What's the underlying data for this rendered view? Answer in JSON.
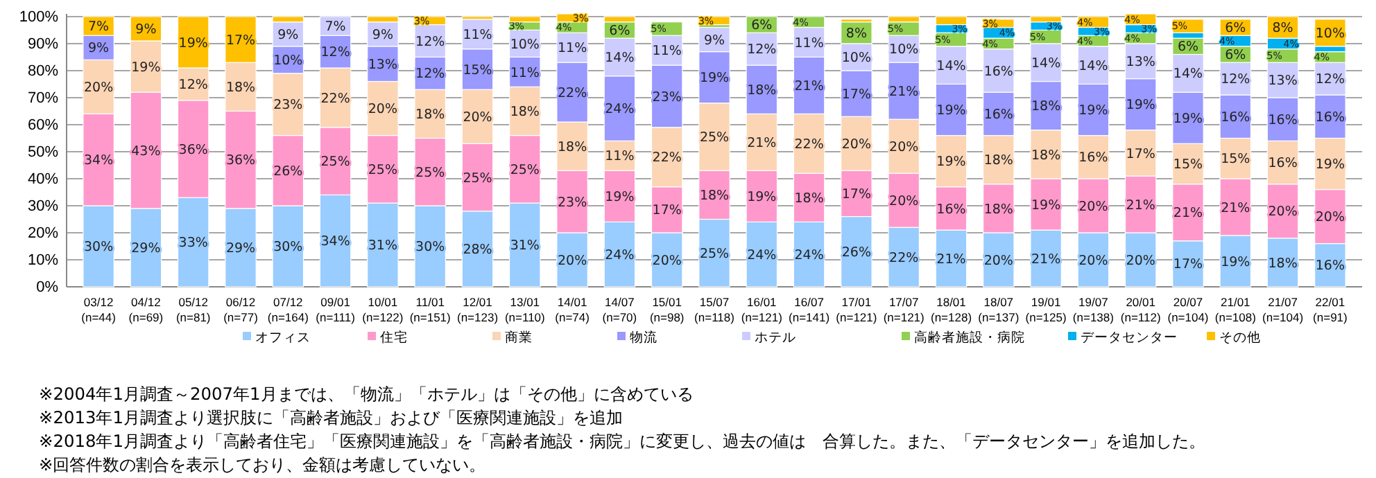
{
  "chart_data": {
    "type": "bar",
    "stacked": true,
    "ylim": [
      0,
      101
    ],
    "yticks": [
      {
        "value": 0,
        "label": "0%"
      },
      {
        "value": 10,
        "label": "10%"
      },
      {
        "value": 20,
        "label": "20%"
      },
      {
        "value": 30,
        "label": "30%"
      },
      {
        "value": 40,
        "label": "40%"
      },
      {
        "value": 50,
        "label": "50%"
      },
      {
        "value": 60,
        "label": "60%"
      },
      {
        "value": 70,
        "label": "70%"
      },
      {
        "value": 80,
        "label": "80%"
      },
      {
        "value": 90,
        "label": "90%"
      },
      {
        "value": 100,
        "label": "100%"
      }
    ],
    "grid": "y",
    "legend": "bottom",
    "categories": [
      "03/12\n(n=44)",
      "04/12\n(n=69)",
      "05/12\n(n=81)",
      "06/12\n(n=77)",
      "07/12\n(n=164)",
      "09/01\n(n=111)",
      "10/01\n(n=122)",
      "11/01\n(n=151)",
      "12/01\n(n=123)",
      "13/01\n(n=110)",
      "14/01\n(n=74)",
      "14/07\n(n=70)",
      "15/01\n(n=98)",
      "15/07\n(n=118)",
      "16/01\n(n=121)",
      "16/07\n(n=141)",
      "17/01\n(n=121)",
      "17/07\n(n=121)",
      "18/01\n(n=128)",
      "18/07\n(n=137)",
      "19/01\n(n=125)",
      "19/07\n(n=138)",
      "20/01\n(n=112)",
      "20/07\n(n=104)",
      "21/01\n(n=108)",
      "21/07\n(n=104)",
      "22/01\n(n=91)"
    ],
    "series": [
      {
        "name": "オフィス",
        "color": "#99ccff",
        "values": [
          30,
          29,
          33,
          29,
          30,
          34,
          31,
          30,
          28,
          31,
          20,
          24,
          20,
          25,
          24,
          24,
          26,
          22,
          21,
          20,
          21,
          20,
          20,
          17,
          19,
          18,
          16
        ],
        "value_labels": [
          "30%",
          "29%",
          "33%",
          "29%",
          "30%",
          "34%",
          "31%",
          "30%",
          "28%",
          "31%",
          "20%",
          "24%",
          "20%",
          "25%",
          "24%",
          "24%",
          "26%",
          "22%",
          "21%",
          "20%",
          "21%",
          "20%",
          "20%",
          "17%",
          "19%",
          "18%",
          "16%"
        ]
      },
      {
        "name": "住宅",
        "color": "#ff99cc",
        "values": [
          34,
          43,
          36,
          36,
          26,
          25,
          25,
          25,
          25,
          25,
          23,
          19,
          17,
          18,
          19,
          18,
          17,
          20,
          16,
          18,
          19,
          20,
          21,
          21,
          21,
          20,
          20
        ],
        "value_labels": [
          "34%",
          "43%",
          "36%",
          "36%",
          "26%",
          "25%",
          "25%",
          "25%",
          "25%",
          "25%",
          "23%",
          "19%",
          "17%",
          "18%",
          "19%",
          "18%",
          "17%",
          "20%",
          "16%",
          "18%",
          "19%",
          "20%",
          "21%",
          "21%",
          "21%",
          "20%",
          "20%"
        ]
      },
      {
        "name": "商業",
        "color": "#fcd5b5",
        "values": [
          20,
          19,
          12,
          18,
          23,
          22,
          20,
          18,
          20,
          18,
          18,
          11,
          22,
          25,
          21,
          22,
          20,
          20,
          19,
          18,
          18,
          16,
          17,
          15,
          15,
          16,
          19
        ],
        "value_labels": [
          "20%",
          "19%",
          "12%",
          "18%",
          "23%",
          "22%",
          "20%",
          "18%",
          "20%",
          "18%",
          "18%",
          "11%",
          "22%",
          "25%",
          "21%",
          "22%",
          "20%",
          "20%",
          "19%",
          "18%",
          "18%",
          "16%",
          "17%",
          "15%",
          "15%",
          "16%",
          "19%"
        ]
      },
      {
        "name": "物流",
        "color": "#9999ff",
        "values": [
          9,
          null,
          null,
          null,
          10,
          12,
          13,
          12,
          15,
          11,
          22,
          24,
          23,
          19,
          18,
          21,
          17,
          21,
          19,
          16,
          18,
          19,
          19,
          19,
          16,
          16,
          16
        ],
        "value_labels": [
          "9%",
          null,
          null,
          null,
          "10%",
          "12%",
          "13%",
          "12%",
          "15%",
          "11%",
          "22%",
          "24%",
          "23%",
          "19%",
          "18%",
          "21%",
          "17%",
          "21%",
          "19%",
          "16%",
          "18%",
          "19%",
          "19%",
          "19%",
          "16%",
          "16%",
          "16%"
        ]
      },
      {
        "name": "ホテル",
        "color": "#ccccff",
        "values": [
          null,
          null,
          null,
          null,
          9,
          7,
          9,
          12,
          11,
          10,
          11,
          14,
          11,
          9,
          12,
          11,
          10,
          10,
          14,
          16,
          14,
          14,
          13,
          14,
          12,
          13,
          12
        ],
        "value_labels": [
          null,
          null,
          null,
          null,
          "9%",
          "7%",
          "9%",
          "12%",
          "11%",
          "10%",
          "11%",
          "14%",
          "11%",
          "9%",
          "12%",
          "11%",
          "10%",
          "10%",
          "14%",
          "16%",
          "14%",
          "14%",
          "13%",
          "14%",
          "12%",
          "13%",
          "12%"
        ]
      },
      {
        "name": "高齢者施設・病院",
        "color": "#92d050",
        "values": [
          null,
          null,
          null,
          null,
          null,
          null,
          null,
          null,
          null,
          3,
          4,
          6,
          5,
          1,
          6,
          4,
          8,
          5,
          5,
          4,
          5,
          4,
          4,
          6,
          6,
          5,
          4
        ],
        "value_labels": [
          null,
          null,
          null,
          null,
          null,
          null,
          null,
          null,
          null,
          "3%",
          "4%",
          "6%",
          "5%",
          null,
          "6%",
          "4%",
          "8%",
          "5%",
          "5%",
          "4%",
          "5%",
          "4%",
          "4%",
          "6%",
          "6%",
          "5%",
          "4%"
        ]
      },
      {
        "name": "データセンター",
        "color": "#00b0f0",
        "values": [
          null,
          null,
          null,
          null,
          null,
          null,
          null,
          null,
          null,
          null,
          null,
          null,
          null,
          null,
          null,
          null,
          null,
          null,
          3,
          4,
          3,
          3,
          3,
          2,
          4,
          4,
          2
        ],
        "value_labels": [
          null,
          null,
          null,
          null,
          null,
          null,
          null,
          null,
          null,
          null,
          null,
          null,
          null,
          null,
          null,
          null,
          null,
          null,
          "3%",
          "4%",
          "3%",
          "3%",
          "3%",
          null,
          "4%",
          "4%",
          null
        ]
      },
      {
        "name": "その他",
        "color": "#ffc000",
        "values": [
          7,
          9,
          19,
          17,
          2,
          null,
          2,
          3,
          1,
          2,
          3,
          2,
          null,
          3,
          null,
          null,
          1,
          2,
          3,
          3,
          2,
          4,
          4,
          5,
          6,
          8,
          10
        ],
        "value_labels": [
          "7%",
          "9%",
          "19%",
          "17%",
          null,
          null,
          null,
          "3%",
          null,
          null,
          "3%",
          null,
          null,
          "3%",
          null,
          null,
          null,
          null,
          null,
          "3%",
          null,
          "4%",
          "4%",
          "5%",
          "6%",
          "8%",
          "10%"
        ]
      }
    ],
    "annotations": [
      "※2004年1月調査～2007年1月までは、「物流」「ホテル」は「その他」に含めている",
      "※2013年1月調査より選択肢に「高齢者施設」および「医療関連施設」を追加",
      "※2018年1月調査より「高齢者住宅」「医療関連施設」を「高齢者施設・病院」に変更し、過去の値は　合算した。また、「データセンター」を追加した。",
      "※回答件数の割合を表示しており、金額は考慮していない。"
    ]
  }
}
